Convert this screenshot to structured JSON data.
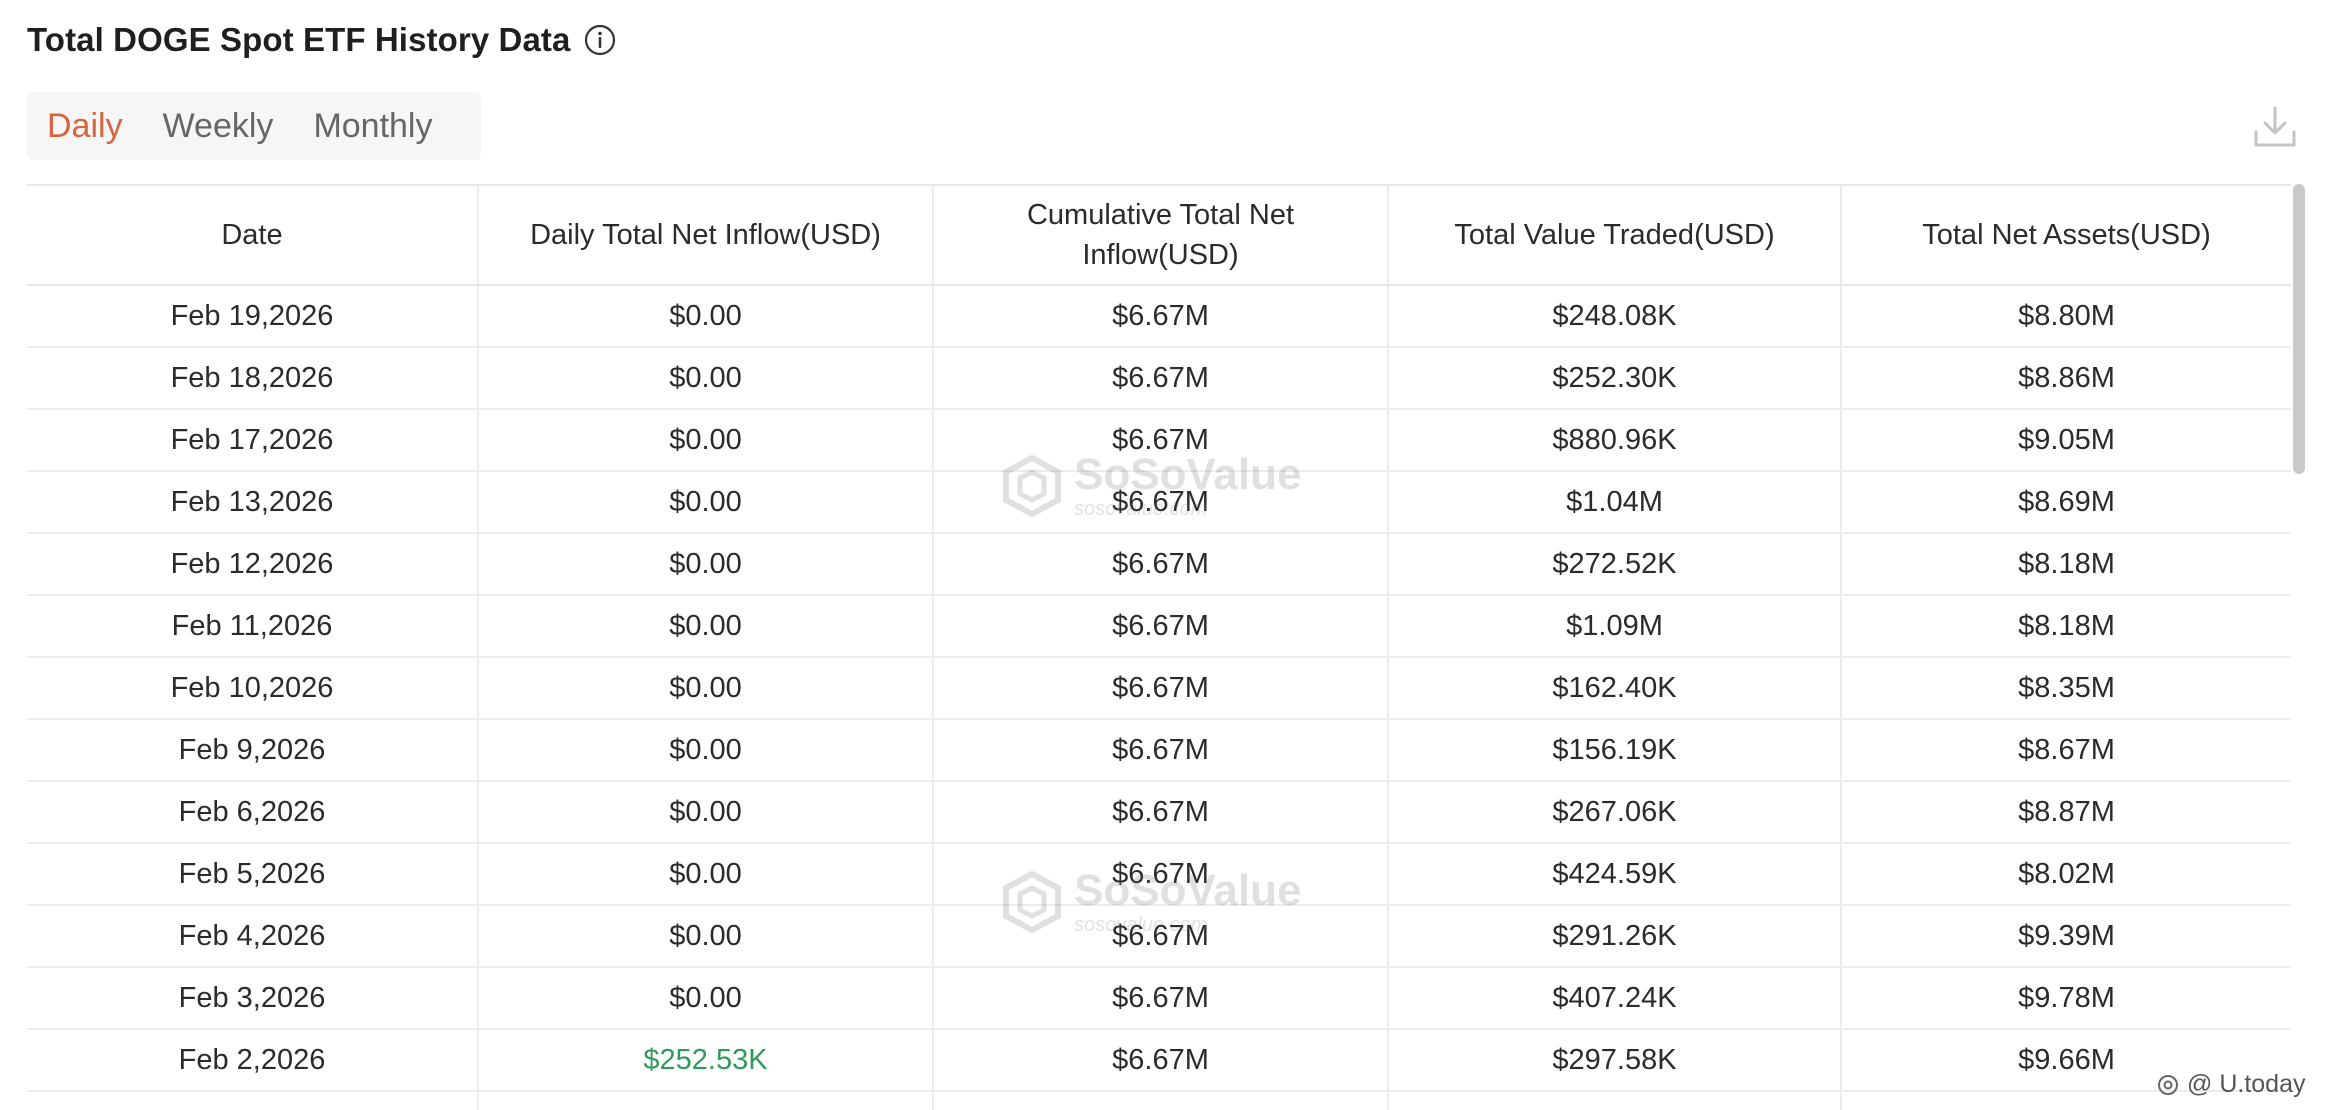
{
  "header": {
    "title": "Total DOGE Spot ETF History Data",
    "info_icon": "info-circle-icon"
  },
  "tabs": [
    {
      "label": "Daily",
      "active": true
    },
    {
      "label": "Weekly",
      "active": false
    },
    {
      "label": "Monthly",
      "active": false
    }
  ],
  "toolbar": {
    "download_icon": "download-icon"
  },
  "table": {
    "columns": [
      "Date",
      "Daily Total Net Inflow(USD)",
      "Cumulative Total Net Inflow(USD)",
      "Total Value Traded(USD)",
      "Total Net Assets(USD)"
    ],
    "rows": [
      [
        "Feb 19,2026",
        "$0.00",
        "$6.67M",
        "$248.08K",
        "$8.80M"
      ],
      [
        "Feb 18,2026",
        "$0.00",
        "$6.67M",
        "$252.30K",
        "$8.86M"
      ],
      [
        "Feb 17,2026",
        "$0.00",
        "$6.67M",
        "$880.96K",
        "$9.05M"
      ],
      [
        "Feb 13,2026",
        "$0.00",
        "$6.67M",
        "$1.04M",
        "$8.69M"
      ],
      [
        "Feb 12,2026",
        "$0.00",
        "$6.67M",
        "$272.52K",
        "$8.18M"
      ],
      [
        "Feb 11,2026",
        "$0.00",
        "$6.67M",
        "$1.09M",
        "$8.18M"
      ],
      [
        "Feb 10,2026",
        "$0.00",
        "$6.67M",
        "$162.40K",
        "$8.35M"
      ],
      [
        "Feb 9,2026",
        "$0.00",
        "$6.67M",
        "$156.19K",
        "$8.67M"
      ],
      [
        "Feb 6,2026",
        "$0.00",
        "$6.67M",
        "$267.06K",
        "$8.87M"
      ],
      [
        "Feb 5,2026",
        "$0.00",
        "$6.67M",
        "$424.59K",
        "$8.02M"
      ],
      [
        "Feb 4,2026",
        "$0.00",
        "$6.67M",
        "$291.26K",
        "$9.39M"
      ],
      [
        "Feb 3,2026",
        "$0.00",
        "$6.67M",
        "$407.24K",
        "$9.78M"
      ],
      [
        "Feb 2,2026",
        "$252.53K",
        "$6.67M",
        "$297.58K",
        "$9.66M"
      ],
      [
        "",
        "",
        "",
        "",
        ""
      ]
    ],
    "positive_color": "#2f9a5a"
  },
  "watermarks": [
    {
      "brand": "SoSoValue",
      "site": "sosovalue.com"
    },
    {
      "brand": "SoSoValue",
      "site": "sosovalue.com"
    }
  ],
  "credit": {
    "text": "@ U.today"
  },
  "colors": {
    "active_tab": "#d8653d",
    "positive": "#2f9a5a"
  }
}
